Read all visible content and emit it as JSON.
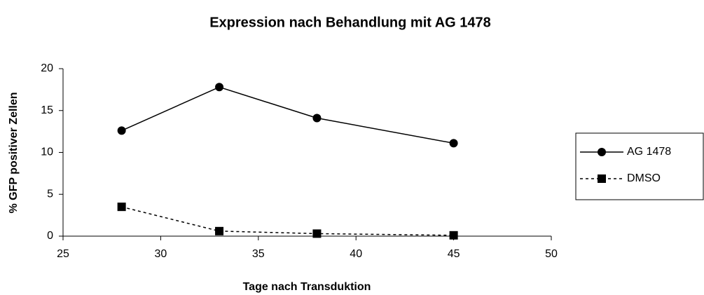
{
  "chart_data": {
    "type": "line",
    "title": "Expression nach Behandlung mit AG 1478",
    "xlabel": "Tage nach Transduktion",
    "ylabel": "% GFP positiver Zellen",
    "x": [
      28,
      33,
      38,
      45
    ],
    "series": [
      {
        "name": "AG 1478",
        "color": "#000000",
        "line_style": "solid",
        "marker": "circle",
        "values": [
          12.6,
          17.8,
          14.1,
          11.1
        ]
      },
      {
        "name": "DMSO",
        "color": "#000000",
        "line_style": "dotted",
        "marker": "square",
        "values": [
          3.5,
          0.6,
          0.3,
          0.1
        ]
      }
    ],
    "xlim": [
      25,
      50
    ],
    "xticks": [
      25,
      30,
      35,
      40,
      45,
      50
    ],
    "ylim": [
      0,
      20
    ],
    "yticks": [
      0,
      5,
      10,
      15,
      20
    ],
    "grid": false,
    "legend": "right"
  }
}
